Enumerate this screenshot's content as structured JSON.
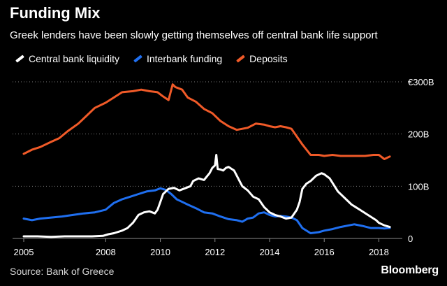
{
  "chart_data": {
    "type": "line",
    "title": "Funding Mix",
    "subtitle": "Greek lenders have been slowly getting themselves off central bank life support",
    "x_ticks": [
      "2005",
      "2008",
      "2010",
      "2012",
      "2014",
      "2016",
      "2018"
    ],
    "x_tick_values": [
      2005,
      2008,
      2010,
      2012,
      2014,
      2016,
      2018
    ],
    "y_ticks": [
      "0",
      "100B",
      "200B",
      "€300B"
    ],
    "y_tick_values": [
      0,
      100,
      200,
      300
    ],
    "xlim": [
      2005,
      2018.5
    ],
    "ylim": [
      0,
      300
    ],
    "legend_position": "top-left",
    "series": [
      {
        "name": "Central bank liquidity",
        "color": "#ffffff",
        "x": [
          2005.0,
          2005.5,
          2006.0,
          2006.5,
          2007.0,
          2007.5,
          2007.9,
          2008.1,
          2008.3,
          2008.6,
          2008.8,
          2009.0,
          2009.2,
          2009.4,
          2009.6,
          2009.8,
          2009.9,
          2010.0,
          2010.1,
          2010.2,
          2010.3,
          2010.5,
          2010.7,
          2010.9,
          2011.1,
          2011.2,
          2011.4,
          2011.6,
          2011.8,
          2011.9,
          2012.0,
          2012.05,
          2012.1,
          2012.2,
          2012.3,
          2012.4,
          2012.5,
          2012.7,
          2012.9,
          2013.0,
          2013.2,
          2013.4,
          2013.6,
          2013.8,
          2014.0,
          2014.2,
          2014.4,
          2014.6,
          2014.8,
          2015.0,
          2015.1,
          2015.2,
          2015.35,
          2015.5,
          2015.7,
          2015.9,
          2016.0,
          2016.2,
          2016.5,
          2016.8,
          2017.0,
          2017.3,
          2017.6,
          2017.9,
          2018.0,
          2018.2,
          2018.4
        ],
        "values": [
          4,
          4,
          3,
          4,
          4,
          4,
          5,
          8,
          10,
          15,
          20,
          30,
          45,
          50,
          52,
          48,
          55,
          70,
          85,
          90,
          95,
          97,
          92,
          96,
          100,
          110,
          115,
          112,
          125,
          135,
          140,
          160,
          133,
          132,
          130,
          135,
          137,
          130,
          110,
          100,
          92,
          80,
          75,
          60,
          50,
          45,
          42,
          38,
          40,
          55,
          70,
          95,
          105,
          110,
          120,
          125,
          123,
          115,
          90,
          75,
          65,
          55,
          45,
          35,
          30,
          25,
          22
        ]
      },
      {
        "name": "Interbank funding",
        "color": "#1f6ff0",
        "x": [
          2005.0,
          2005.3,
          2005.6,
          2006.0,
          2006.4,
          2006.8,
          2007.2,
          2007.6,
          2008.0,
          2008.3,
          2008.6,
          2008.9,
          2009.2,
          2009.5,
          2009.8,
          2010.0,
          2010.2,
          2010.4,
          2010.6,
          2010.8,
          2011.0,
          2011.3,
          2011.6,
          2011.9,
          2012.2,
          2012.5,
          2012.8,
          2013.0,
          2013.2,
          2013.4,
          2013.6,
          2013.8,
          2014.0,
          2014.2,
          2014.4,
          2014.6,
          2014.8,
          2015.0,
          2015.2,
          2015.5,
          2015.8,
          2016.0,
          2016.3,
          2016.6,
          2016.9,
          2017.1,
          2017.4,
          2017.7,
          2018.0,
          2018.2,
          2018.4
        ],
        "values": [
          38,
          35,
          38,
          40,
          42,
          45,
          48,
          50,
          55,
          68,
          75,
          80,
          85,
          90,
          92,
          96,
          93,
          85,
          75,
          70,
          65,
          58,
          50,
          48,
          42,
          37,
          35,
          32,
          38,
          40,
          48,
          50,
          45,
          42,
          43,
          42,
          40,
          35,
          20,
          10,
          12,
          15,
          18,
          22,
          25,
          27,
          24,
          20,
          20,
          19,
          20
        ]
      },
      {
        "name": "Deposits",
        "color": "#f05a28",
        "x": [
          2005.0,
          2005.3,
          2005.6,
          2006.0,
          2006.3,
          2006.6,
          2007.0,
          2007.3,
          2007.6,
          2008.0,
          2008.3,
          2008.6,
          2009.0,
          2009.3,
          2009.6,
          2009.9,
          2010.1,
          2010.3,
          2010.45,
          2010.55,
          2010.8,
          2011.0,
          2011.3,
          2011.6,
          2011.9,
          2012.2,
          2012.5,
          2012.8,
          2013.0,
          2013.2,
          2013.5,
          2013.8,
          2014.0,
          2014.2,
          2014.4,
          2014.6,
          2014.8,
          2015.0,
          2015.2,
          2015.5,
          2015.8,
          2016.0,
          2016.3,
          2016.6,
          2016.9,
          2017.2,
          2017.5,
          2017.8,
          2018.0,
          2018.2,
          2018.4
        ],
        "values": [
          162,
          170,
          175,
          185,
          192,
          205,
          220,
          235,
          250,
          260,
          270,
          280,
          282,
          285,
          282,
          280,
          272,
          265,
          295,
          290,
          285,
          270,
          262,
          248,
          240,
          225,
          215,
          208,
          210,
          212,
          220,
          218,
          215,
          213,
          215,
          213,
          210,
          195,
          180,
          160,
          160,
          158,
          160,
          158,
          158,
          158,
          158,
          160,
          160,
          152,
          157
        ]
      }
    ]
  },
  "source": "Source: Bank of Greece",
  "brand": "Bloomberg"
}
